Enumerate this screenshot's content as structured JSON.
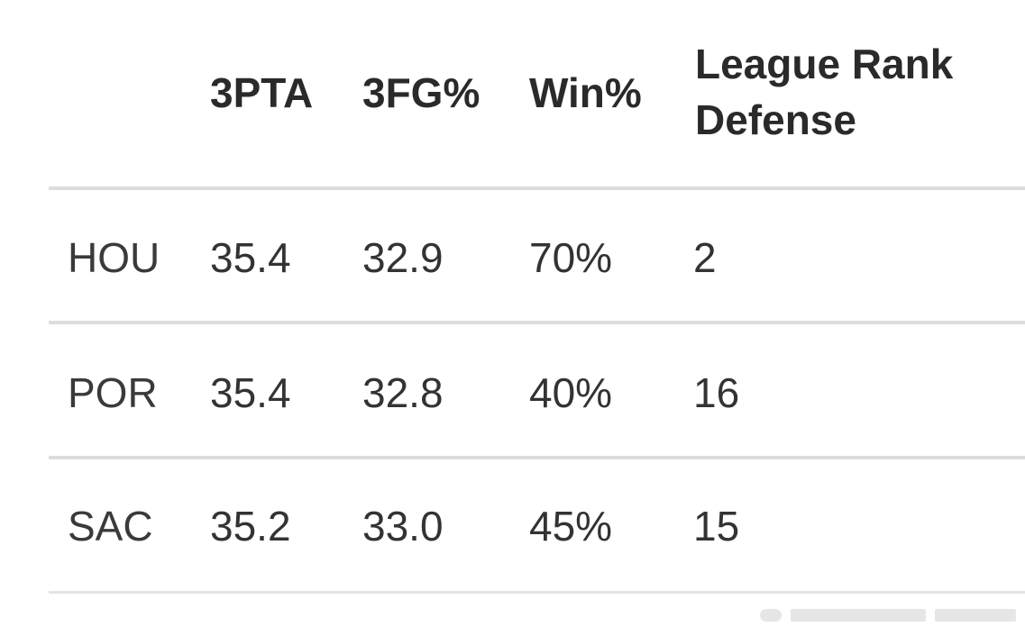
{
  "chart_data": {
    "type": "table",
    "columns": [
      "",
      "3PTA",
      "3FG%",
      "Win%",
      "League Rank Defense"
    ],
    "header": {
      "c1": "3PTA",
      "c2": "3FG%",
      "c3": "Win%",
      "c4_line1": "League Rank",
      "c4_line2": "Defense"
    },
    "rows": [
      {
        "team": "HOU",
        "pta3": "35.4",
        "fg3": "32.9",
        "win": "70%",
        "rank": "2"
      },
      {
        "team": "POR",
        "pta3": "35.4",
        "fg3": "32.8",
        "win": "40%",
        "rank": "16"
      },
      {
        "team": "SAC",
        "pta3": "35.2",
        "fg3": "33.0",
        "win": "45%",
        "rank": "15"
      }
    ]
  },
  "colors": {
    "text": "#2b2b2b",
    "divider": "#dcdcdc",
    "background": "#ffffff"
  }
}
